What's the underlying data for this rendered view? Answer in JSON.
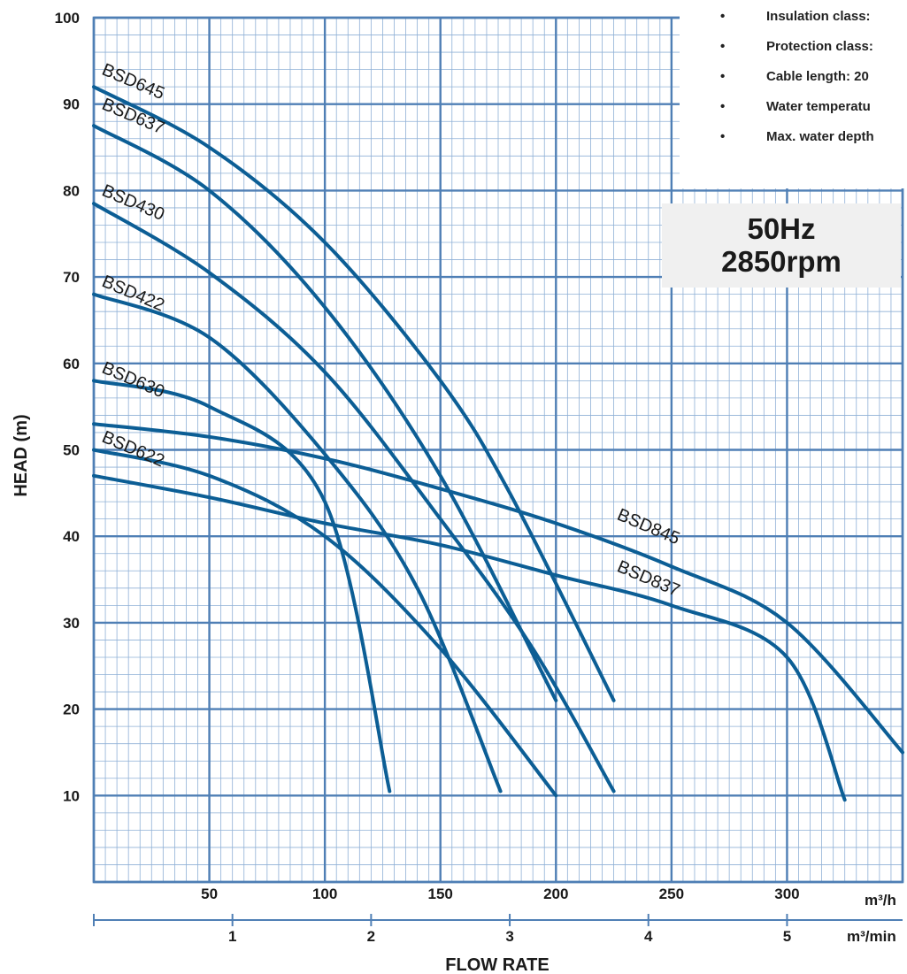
{
  "chart_data": {
    "type": "line",
    "ylabel": "HEAD (m)",
    "xlabel": "FLOW RATE",
    "x_unit_primary": "m³/h",
    "x_unit_secondary": "m³/min",
    "xlim": [
      0,
      350
    ],
    "ylim": [
      0,
      100
    ],
    "x_ticks": [
      50,
      100,
      150,
      200,
      250,
      300
    ],
    "x_tick_labels": [
      "50",
      "100",
      "150",
      "200",
      "250",
      "300"
    ],
    "x2_ticks": [
      1,
      2,
      3,
      4,
      5
    ],
    "x2_tick_labels": [
      "1",
      "2",
      "3",
      "4",
      "5"
    ],
    "y_ticks": [
      10,
      20,
      30,
      40,
      50,
      60,
      70,
      80,
      90,
      100
    ],
    "y_tick_labels": [
      "10",
      "20",
      "30",
      "40",
      "50",
      "60",
      "70",
      "80",
      "90",
      "100"
    ],
    "grid": true,
    "series": [
      {
        "name": "BSD645",
        "x": [
          0,
          50,
          100,
          150,
          180,
          225
        ],
        "y": [
          92,
          85,
          74,
          58,
          45,
          21
        ]
      },
      {
        "name": "BSD637",
        "x": [
          0,
          50,
          100,
          150,
          200
        ],
        "y": [
          87.5,
          80,
          66.5,
          47,
          21
        ]
      },
      {
        "name": "BSD430",
        "x": [
          0,
          50,
          100,
          150,
          190,
          225
        ],
        "y": [
          78.5,
          70.5,
          59,
          42,
          27,
          10.5
        ]
      },
      {
        "name": "BSD422",
        "x": [
          0,
          50,
          100,
          140,
          176
        ],
        "y": [
          68,
          63,
          49.5,
          34,
          10.5
        ]
      },
      {
        "name": "BSD630",
        "x": [
          0,
          50,
          100,
          128
        ],
        "y": [
          58,
          55,
          44,
          10.5
        ]
      },
      {
        "name": "BSD622",
        "x": [
          0,
          50,
          100,
          150,
          200
        ],
        "y": [
          50,
          47,
          40,
          27,
          10
        ]
      },
      {
        "name": "BSD845",
        "x": [
          0,
          50,
          100,
          150,
          200,
          250,
          300,
          350
        ],
        "y": [
          53,
          51.5,
          49,
          45.5,
          41.5,
          36.5,
          30,
          15
        ]
      },
      {
        "name": "BSD837",
        "x": [
          0,
          50,
          100,
          150,
          200,
          250,
          300,
          325
        ],
        "y": [
          47,
          44.5,
          41.5,
          39,
          35.5,
          32,
          26,
          9.5
        ]
      }
    ],
    "annotation": {
      "line1": "50Hz",
      "line2": "2850rpm"
    }
  },
  "specs": [
    "Insulation class:",
    "Protection class:",
    "Cable length: 20",
    "Water temperatu",
    "Max. water depth"
  ],
  "colors": {
    "grid": "#4f7fb5",
    "grid_minor": "#8fb0d6",
    "curve": "#0c5e95",
    "box": "#f0f0f0"
  }
}
